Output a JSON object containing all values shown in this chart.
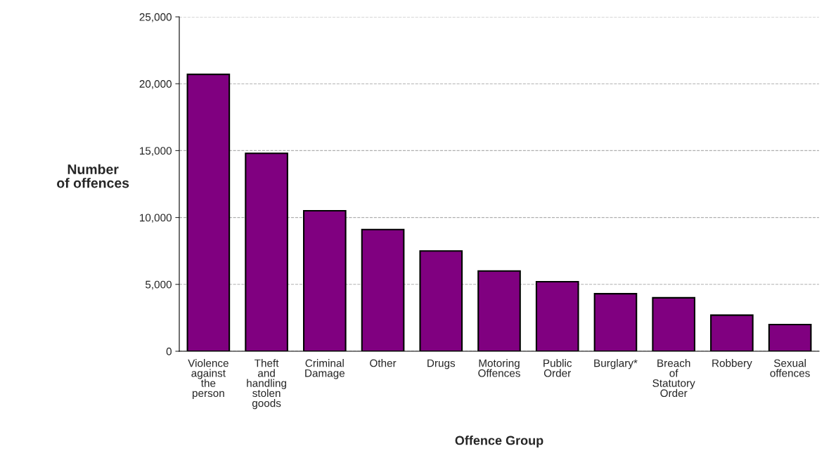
{
  "chart_data": {
    "type": "bar",
    "categories": [
      "Violence\nagainst\nthe\nperson",
      "Theft\nand\nhandling\nstolen\ngoods",
      "Criminal\nDamage",
      "Other",
      "Drugs",
      "Motoring\nOffences",
      "Public\nOrder",
      "Burglary*",
      "Breach\nof\nStatutory\nOrder",
      "Robbery",
      "Sexual\noffences"
    ],
    "values": [
      20700,
      14800,
      10500,
      9100,
      7500,
      6000,
      5200,
      4300,
      4000,
      2700,
      2000
    ],
    "color": "#800080",
    "xlabel": "Offence Group",
    "ylabel": "Number\nof offences",
    "ylim": [
      0,
      25000
    ],
    "yticks": [
      {
        "value": 0,
        "label": "0"
      },
      {
        "value": 5000,
        "label": "5,000"
      },
      {
        "value": 10000,
        "label": "10,000"
      },
      {
        "value": 15000,
        "label": "15,000"
      },
      {
        "value": 20000,
        "label": "20,000"
      },
      {
        "value": 25000,
        "label": "25,000"
      }
    ],
    "grid": "y",
    "legend": false
  }
}
